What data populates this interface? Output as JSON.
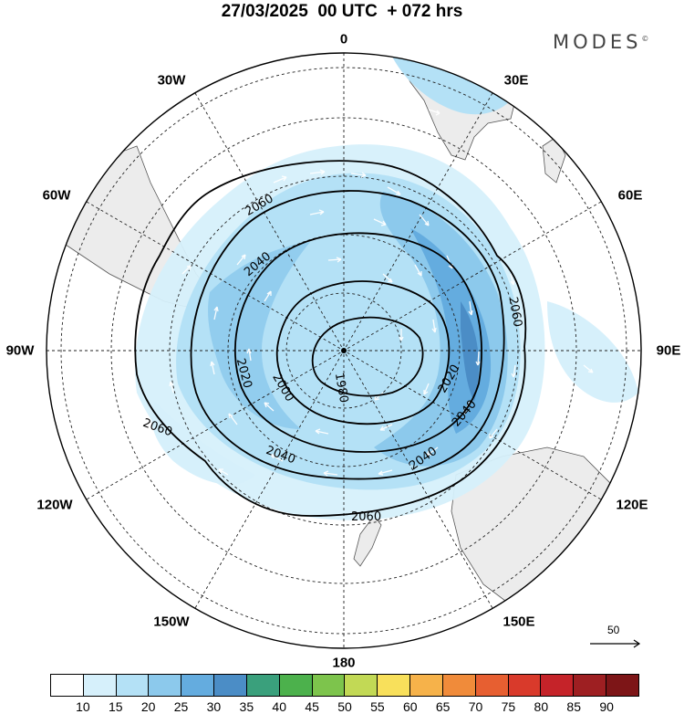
{
  "header": {
    "title": "27/03/2025  00 UTC  + 072 hrs",
    "brand": "MODES",
    "brand_mark": "©"
  },
  "map": {
    "longitude_labels": [
      "0",
      "30E",
      "60E",
      "90E",
      "120E",
      "150E",
      "180",
      "150W",
      "120W",
      "90W",
      "60W",
      "30W"
    ],
    "contours": [
      {
        "value": 1980,
        "labels": [
          "1980"
        ]
      },
      {
        "value": 2000,
        "labels": [
          "2000"
        ]
      },
      {
        "value": 2020,
        "labels": [
          "2020",
          "2020"
        ]
      },
      {
        "value": 2040,
        "labels": [
          "2040",
          "2040",
          "2040",
          "2040"
        ]
      },
      {
        "value": 2060,
        "labels": [
          "2060",
          "2060",
          "2060",
          "2060"
        ]
      }
    ],
    "wind_reference": {
      "label": "50",
      "icon": "arrow-right-icon"
    }
  },
  "legend": {
    "values": [
      "10",
      "15",
      "20",
      "25",
      "30",
      "35",
      "40",
      "45",
      "50",
      "55",
      "60",
      "65",
      "70",
      "75",
      "80",
      "85",
      "90"
    ],
    "colors": [
      "#ffffff",
      "#d6f0fb",
      "#b4e1f6",
      "#8cc9ec",
      "#64acdf",
      "#4b8dc6",
      "#3aa07c",
      "#4cb14c",
      "#7dc44c",
      "#c2d955",
      "#f8e05b",
      "#f6b24a",
      "#f08b3a",
      "#e75f31",
      "#d93a2b",
      "#c52329",
      "#9e1f22",
      "#7d1517"
    ]
  }
}
